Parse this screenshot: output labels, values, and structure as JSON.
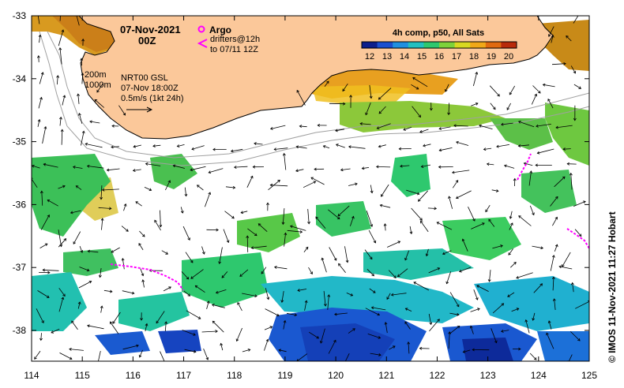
{
  "map": {
    "date": "07-Nov-2021",
    "time": "00Z",
    "legend": {
      "argo_label": "Argo",
      "drifters_line1": "drifters@12h",
      "drifters_line2": "to 07/11 12Z",
      "argo_color": "#ff00ff"
    },
    "isobaths": {
      "line1": "200m",
      "line2": "1000m"
    },
    "current_info": {
      "line1": "NRT00 GSL",
      "line2": "07-Nov 18:00Z",
      "line3": "0.5m/s (1kt 24h)"
    },
    "colorbar": {
      "title": "4h comp, p50, All Sats",
      "ticks": [
        "12",
        "13",
        "14",
        "15",
        "16",
        "17",
        "18",
        "19",
        "20"
      ],
      "colors": [
        "#0d1f8c",
        "#1a4fd0",
        "#1f8fe0",
        "#22c0c0",
        "#2ec86e",
        "#7ed23a",
        "#d8d820",
        "#f0a818",
        "#e06a10",
        "#b82a0a"
      ]
    },
    "credit": "© IMOS 11-Nov-2021 11:27 Hobart",
    "land_color": "#fbc89a",
    "lon_ticks": [
      "114",
      "115",
      "116",
      "117",
      "118",
      "119",
      "120",
      "121",
      "122",
      "123",
      "124",
      "125"
    ],
    "lat_ticks": [
      "-33",
      "-34",
      "-35",
      "-36",
      "-37",
      "-38"
    ]
  }
}
